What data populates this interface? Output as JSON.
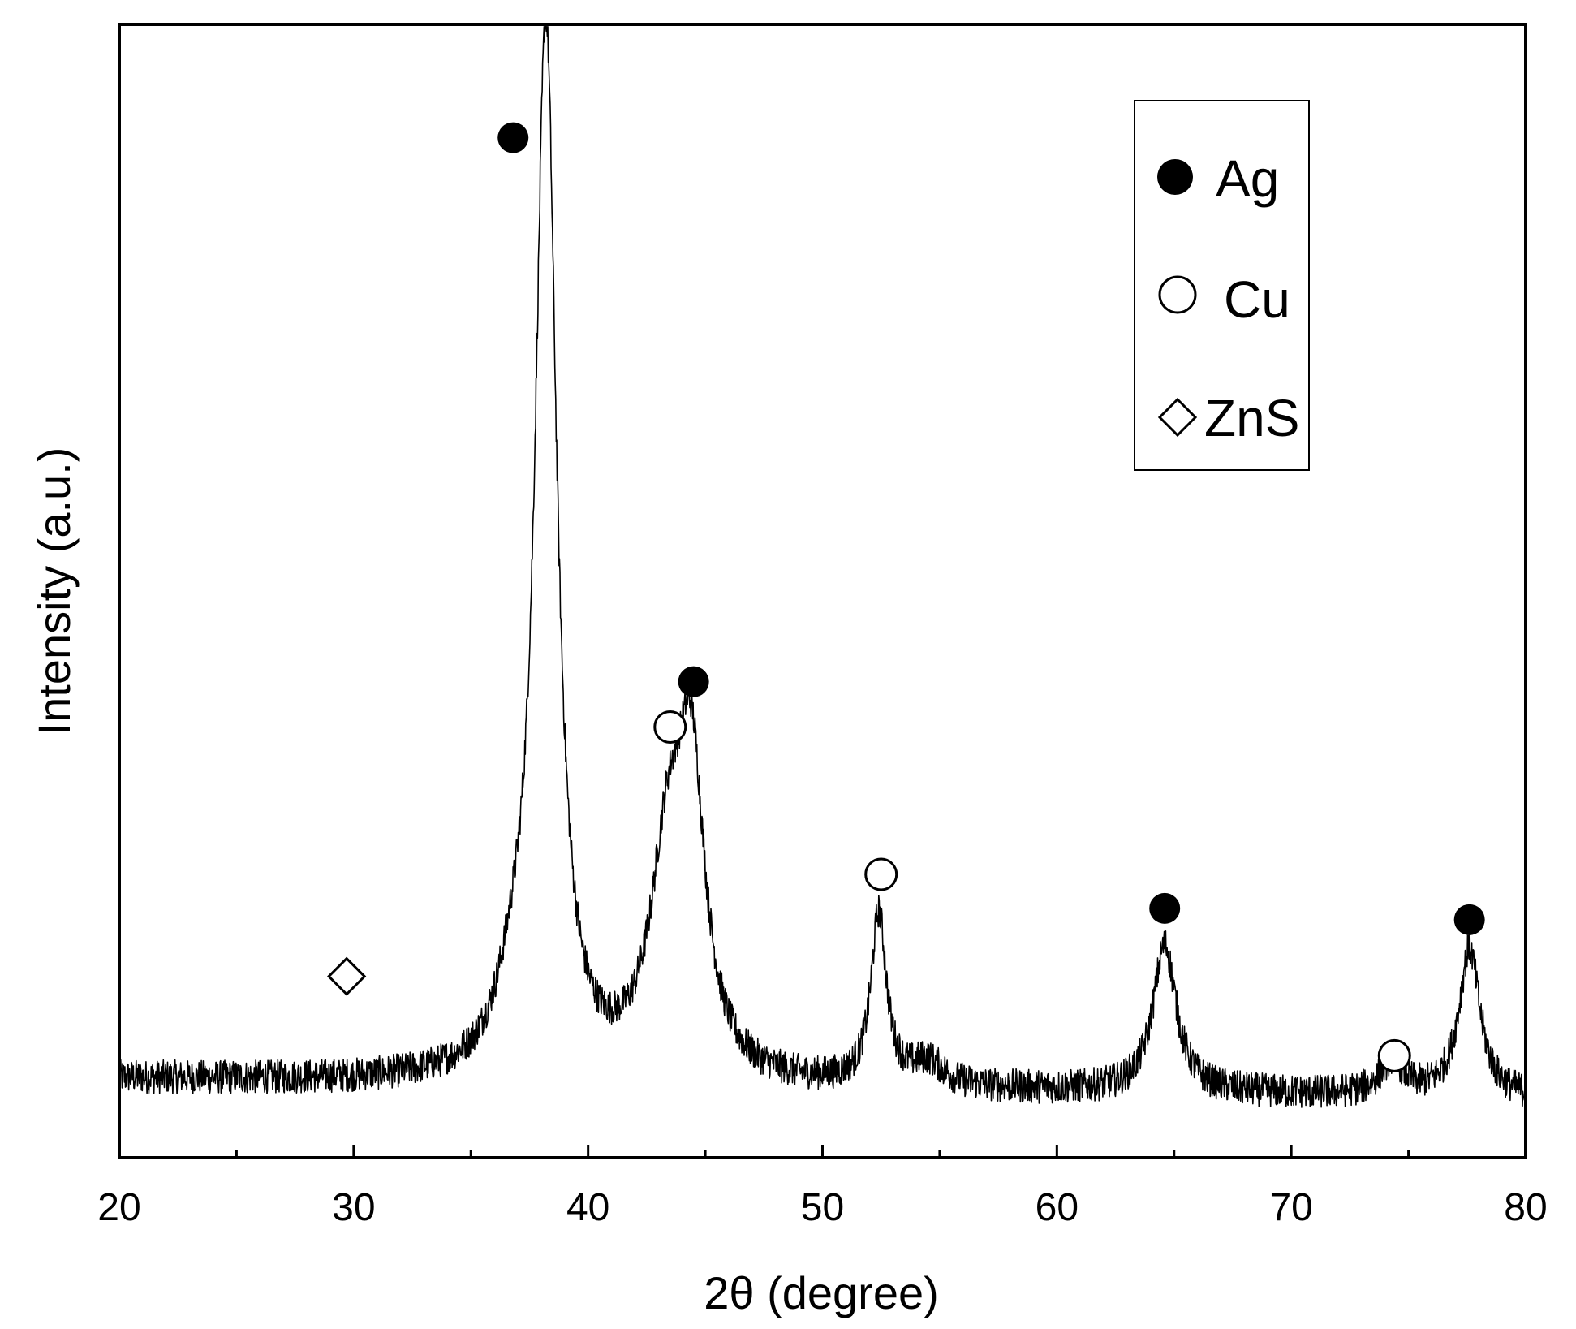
{
  "chart_data": {
    "type": "line",
    "xlabel": "2θ (degree)",
    "ylabel": "Intensity (a.u.)",
    "xlim": [
      20,
      80
    ],
    "ylim": [
      0,
      100
    ],
    "x_ticks": [
      "20",
      "30",
      "40",
      "50",
      "60",
      "70",
      "80"
    ],
    "y_ticks": [],
    "grid": false,
    "line_color": "#000000",
    "baseline": 7,
    "noise": 3,
    "peaks": [
      {
        "x": 38.2,
        "height": 92,
        "width": 0.55
      },
      {
        "x": 36.8,
        "height": 5,
        "width": 0.9
      },
      {
        "x": 43.4,
        "height": 18,
        "width": 0.9
      },
      {
        "x": 44.4,
        "height": 25,
        "width": 0.7
      },
      {
        "x": 52.4,
        "height": 15,
        "width": 0.4
      },
      {
        "x": 54.5,
        "height": 2,
        "width": 0.8
      },
      {
        "x": 64.6,
        "height": 13,
        "width": 0.6
      },
      {
        "x": 74.3,
        "height": 3,
        "width": 0.6
      },
      {
        "x": 77.6,
        "height": 13,
        "width": 0.55
      }
    ],
    "markers": [
      {
        "phase": "Ag",
        "x": 36.8,
        "y": 90
      },
      {
        "phase": "Ag",
        "x": 44.5,
        "y": 42
      },
      {
        "phase": "Ag",
        "x": 64.6,
        "y": 22
      },
      {
        "phase": "Ag",
        "x": 77.6,
        "y": 21
      },
      {
        "phase": "Cu",
        "x": 43.5,
        "y": 38
      },
      {
        "phase": "Cu",
        "x": 52.5,
        "y": 25
      },
      {
        "phase": "Cu",
        "x": 74.4,
        "y": 9
      },
      {
        "phase": "ZnS",
        "x": 29.7,
        "y": 16
      }
    ],
    "legend": {
      "placement": "top-right",
      "entries": [
        {
          "label": "Ag",
          "marker": "filled-circle"
        },
        {
          "label": "Cu",
          "marker": "open-circle"
        },
        {
          "label": "ZnS",
          "marker": "open-diamond"
        }
      ]
    }
  }
}
